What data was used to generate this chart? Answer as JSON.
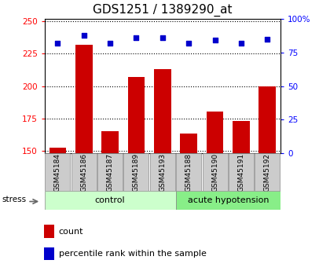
{
  "title": "GDS1251 / 1389290_at",
  "samples": [
    "GSM45184",
    "GSM45186",
    "GSM45187",
    "GSM45189",
    "GSM45193",
    "GSM45188",
    "GSM45190",
    "GSM45191",
    "GSM45192"
  ],
  "counts": [
    152,
    232,
    165,
    207,
    213,
    163,
    180,
    173,
    200
  ],
  "percentiles": [
    82,
    88,
    82,
    86,
    86,
    82,
    84,
    82,
    85
  ],
  "ylim_left": [
    148,
    252
  ],
  "ylim_right": [
    0,
    100
  ],
  "yticks_left": [
    150,
    175,
    200,
    225,
    250
  ],
  "yticks_right": [
    0,
    25,
    50,
    75,
    100
  ],
  "ytick_labels_right": [
    "0",
    "25",
    "50",
    "75",
    "100%"
  ],
  "bar_color": "#cc0000",
  "scatter_color": "#0000cc",
  "grid_color": "#000000",
  "control_label": "control",
  "hypotension_label": "acute hypotension",
  "group_bg_light": "#ccffcc",
  "group_bg_dark": "#88ee88",
  "stress_label": "stress",
  "tick_bg_color": "#cccccc",
  "legend_count_label": "count",
  "legend_percentile_label": "percentile rank within the sample",
  "title_fontsize": 11,
  "tick_fontsize": 7.5
}
